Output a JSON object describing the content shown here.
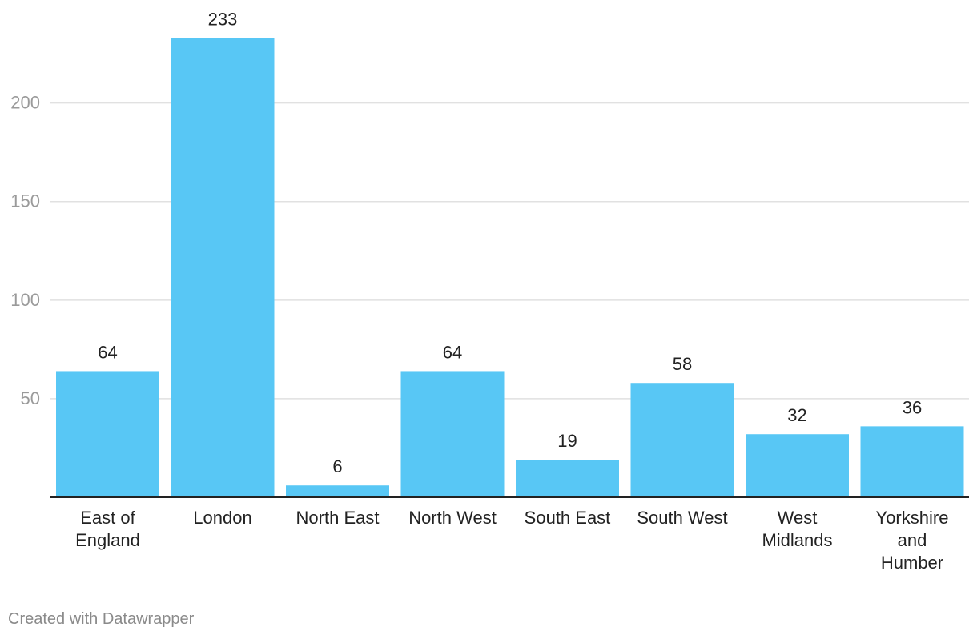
{
  "chart_data": {
    "type": "bar",
    "title": "",
    "xlabel": "",
    "ylabel": "",
    "categories": [
      [
        "East of",
        "England"
      ],
      [
        "London"
      ],
      [
        "North East"
      ],
      [
        "North West"
      ],
      [
        "South East"
      ],
      [
        "South West"
      ],
      [
        "West",
        "Midlands"
      ],
      [
        "Yorkshire",
        "and",
        "Humber"
      ]
    ],
    "values": [
      64,
      233,
      6,
      64,
      19,
      58,
      32,
      36
    ],
    "value_labels": [
      "64",
      "233",
      "6",
      "64",
      "19",
      "58",
      "32",
      "36"
    ],
    "y_ticks": [
      50,
      100,
      150,
      200
    ],
    "y_tick_labels": [
      "50",
      "100",
      "150",
      "200"
    ],
    "ylim": [
      0,
      233
    ],
    "grid": true,
    "bar_color": "#58c7f5",
    "grid_color": "#e1e1e1",
    "axis_color": "#222222",
    "tick_label_color": "#9a9a9a",
    "text_color": "#222222"
  },
  "footer": {
    "credit": "Created with Datawrapper"
  }
}
